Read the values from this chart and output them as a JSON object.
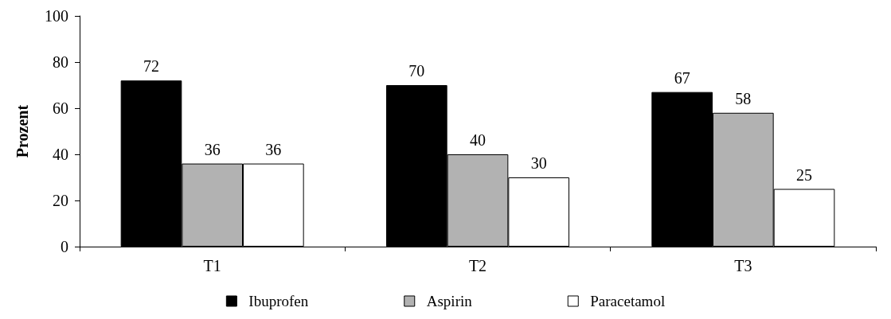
{
  "chart_data": {
    "type": "bar",
    "ylabel": "Prozent",
    "categories": [
      "T1",
      "T2",
      "T3"
    ],
    "series": [
      {
        "name": "Ibuprofen",
        "color": "#000000",
        "values": [
          72,
          70,
          67
        ]
      },
      {
        "name": "Aspirin",
        "color": "#b2b2b2",
        "values": [
          36,
          40,
          58
        ]
      },
      {
        "name": "Paracetamol",
        "color": "#ffffff",
        "values": [
          36,
          30,
          25
        ]
      }
    ],
    "ylim": [
      0,
      100
    ],
    "yticks": [
      0,
      20,
      40,
      60,
      80,
      100
    ],
    "grid": false,
    "legend": "bottom",
    "data_labels": true
  }
}
